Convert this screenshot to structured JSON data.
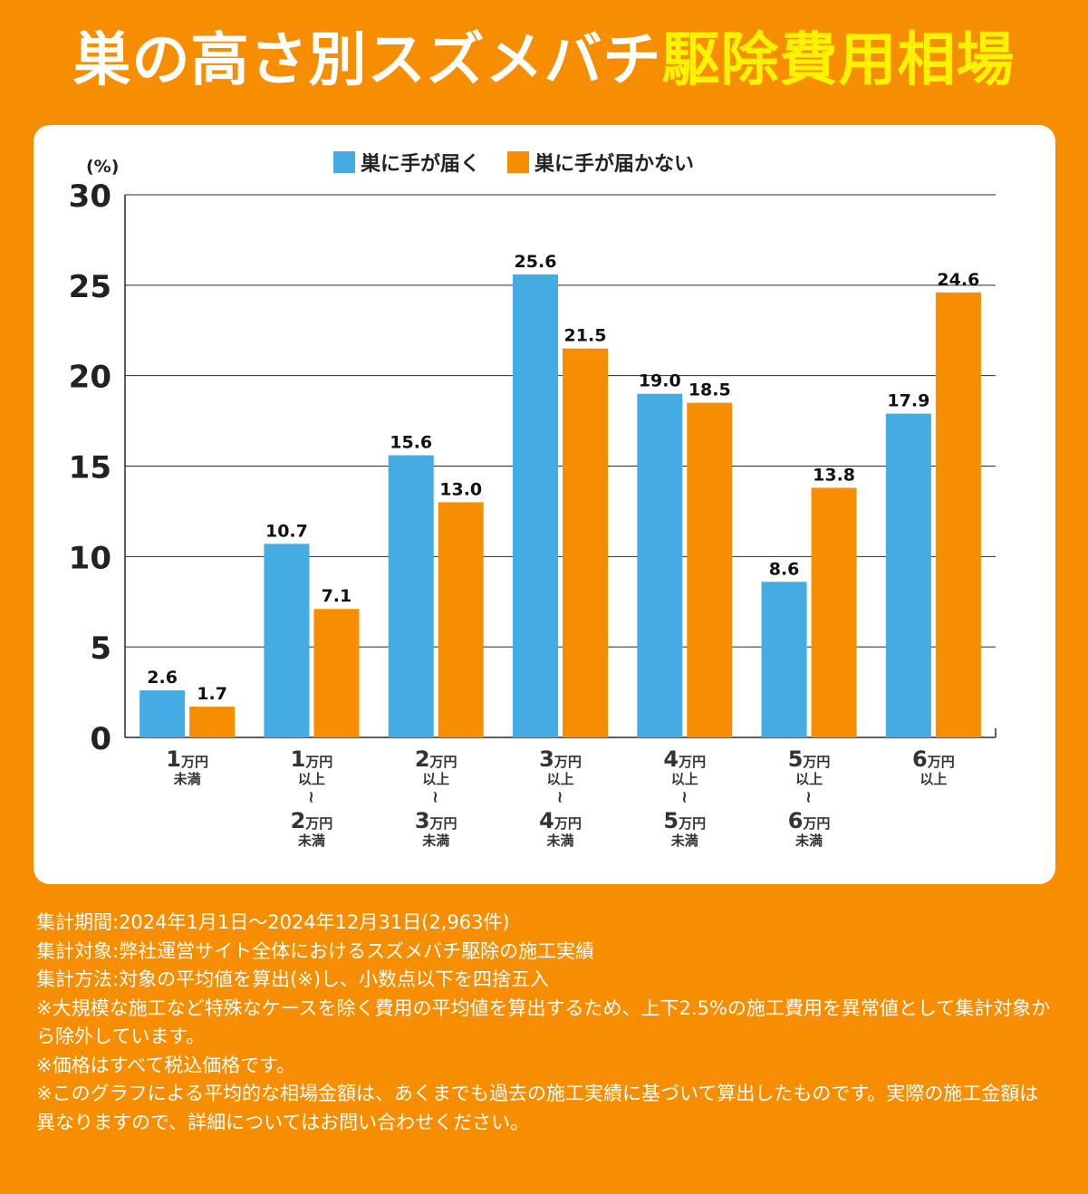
{
  "header": {
    "title_part1": "巣の高さ別スズメバチ",
    "title_part2": "駆除費用相場"
  },
  "colors": {
    "background": "#f78d00",
    "reach": "#45abe3",
    "no_reach": "#f78d00",
    "title_highlight": "#fff200"
  },
  "chart_data": {
    "type": "bar",
    "unit_label": "(%)",
    "ylim": [
      0,
      30
    ],
    "yticks": [
      "0",
      "5",
      "10",
      "15",
      "20",
      "25",
      "30"
    ],
    "grid": true,
    "legend_position": "top-center",
    "categories": [
      {
        "lines": [
          {
            "num": "1",
            "unit": "万円"
          },
          {
            "text": "未満"
          }
        ]
      },
      {
        "lines": [
          {
            "num": "1",
            "unit": "万円"
          },
          {
            "text": "以上"
          },
          {
            "text": "~"
          },
          {
            "num": "2",
            "unit": "万円"
          },
          {
            "text": "未満"
          }
        ]
      },
      {
        "lines": [
          {
            "num": "2",
            "unit": "万円"
          },
          {
            "text": "以上"
          },
          {
            "text": "~"
          },
          {
            "num": "3",
            "unit": "万円"
          },
          {
            "text": "未満"
          }
        ]
      },
      {
        "lines": [
          {
            "num": "3",
            "unit": "万円"
          },
          {
            "text": "以上"
          },
          {
            "text": "~"
          },
          {
            "num": "4",
            "unit": "万円"
          },
          {
            "text": "未満"
          }
        ]
      },
      {
        "lines": [
          {
            "num": "4",
            "unit": "万円"
          },
          {
            "text": "以上"
          },
          {
            "text": "~"
          },
          {
            "num": "5",
            "unit": "万円"
          },
          {
            "text": "未満"
          }
        ]
      },
      {
        "lines": [
          {
            "num": "5",
            "unit": "万円"
          },
          {
            "text": "以上"
          },
          {
            "text": "~"
          },
          {
            "num": "6",
            "unit": "万円"
          },
          {
            "text": "未満"
          }
        ]
      },
      {
        "lines": [
          {
            "num": "6",
            "unit": "万円"
          },
          {
            "text": "以上"
          }
        ]
      }
    ],
    "series": [
      {
        "name": "巣に手が届く",
        "color": "#45abe3",
        "values": [
          2.6,
          10.7,
          15.6,
          25.6,
          19.0,
          8.6,
          17.9
        ],
        "labels": [
          "2.6",
          "10.7",
          "15.6",
          "25.6",
          "19.0",
          "8.6",
          "17.9"
        ]
      },
      {
        "name": "巣に手が届かない",
        "color": "#f78d00",
        "values": [
          1.7,
          7.1,
          13.0,
          21.5,
          18.5,
          13.8,
          24.6
        ],
        "labels": [
          "1.7",
          "7.1",
          "13.0",
          "21.5",
          "18.5",
          "13.8",
          "24.6"
        ]
      }
    ]
  },
  "notes": {
    "period": "集計期間:2024年1月1日～2024年12月31日(2,963件)",
    "target": "集計対象:弊社運営サイト全体におけるスズメバチ駆除の施工実績",
    "method": "集計方法:対象の平均値を算出(※)し、小数点以下を四捨五入",
    "note1": "※大規模な施工など特殊なケースを除く費用の平均値を算出するため、上下2.5%の施工費用を異常値として集計対象から除外しています。",
    "note2": "※価格はすべて税込価格です。",
    "note3": "※このグラフによる平均的な相場金額は、あくまでも過去の施工実績に基づいて算出したものです。実際の施工金額は異なりますので、詳細についてはお問い合わせください。"
  }
}
